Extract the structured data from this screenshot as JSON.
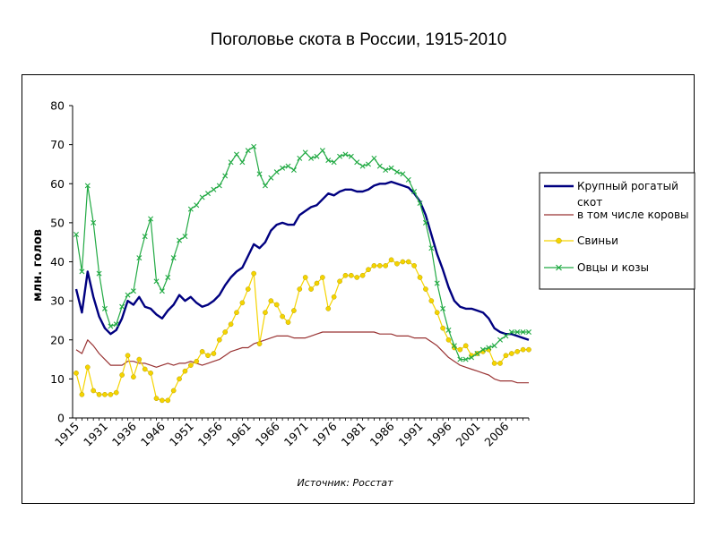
{
  "page": {
    "title": "Поголовье скота в России, 1915-2010"
  },
  "chart_data": {
    "type": "line",
    "title": "Поголовье скота в России, 1915-2010",
    "ylabel": "млн. голов",
    "xlabel": "",
    "source": "Источник: Росстат",
    "ylim": [
      0,
      80
    ],
    "yticks": [
      0,
      10,
      20,
      30,
      40,
      50,
      60,
      70,
      80
    ],
    "xtick_labels": [
      "1915",
      "1931",
      "1936",
      "1946",
      "1951",
      "1956",
      "1961",
      "1966",
      "1971",
      "1976",
      "1981",
      "1986",
      "1991",
      "1996",
      "2001",
      "2006"
    ],
    "grid": false,
    "legend_position": "right",
    "series": [
      {
        "name": "Крупный рогатый скот",
        "color": "#000080",
        "marker": "none",
        "values": [
          33,
          27,
          37.5,
          31,
          26,
          23,
          21.5,
          22.5,
          25.5,
          30,
          29,
          31,
          28.5,
          28,
          26.5,
          25.5,
          27.5,
          29,
          31.5,
          30,
          31,
          29.5,
          28.5,
          29,
          30,
          31.5,
          34,
          36,
          37.5,
          38.5,
          41.5,
          44.5,
          43.5,
          45,
          48,
          49.5,
          50,
          49.5,
          49.5,
          52,
          53,
          54,
          54.5,
          56,
          57.5,
          57,
          58,
          58.5,
          58.5,
          58,
          58,
          58.5,
          59.5,
          60,
          60,
          60.5,
          60,
          59.5,
          59,
          57.5,
          55.5,
          52,
          47,
          42,
          38,
          33.5,
          30,
          28.5,
          28,
          28,
          27.5,
          27,
          25.5,
          23,
          22,
          21.5,
          21.5,
          21,
          20.5,
          20
        ]
      },
      {
        "name": "в том числе коровы",
        "color": "#993333",
        "marker": "none",
        "values": [
          17.5,
          16.5,
          20,
          18.5,
          16.5,
          15,
          13.5,
          13.5,
          13.5,
          14.5,
          14.5,
          14,
          14,
          13.5,
          13,
          13.5,
          14,
          13.5,
          14,
          14,
          14.5,
          14,
          13.5,
          14,
          14.5,
          15,
          16,
          17,
          17.5,
          18,
          18,
          19,
          19.5,
          20,
          20.5,
          21,
          21,
          21,
          20.5,
          20.5,
          20.5,
          21,
          21.5,
          22,
          22,
          22,
          22,
          22,
          22,
          22,
          22,
          22,
          22,
          21.5,
          21.5,
          21.5,
          21,
          21,
          21,
          20.5,
          20.5,
          20.5,
          19.5,
          18.5,
          17,
          15.5,
          14.5,
          13.5,
          13,
          12.5,
          12,
          11.5,
          11,
          10,
          9.5,
          9.5,
          9.5,
          9,
          9,
          9
        ]
      },
      {
        "name": "Свиньи",
        "color": "#f5d400",
        "marker": "circle",
        "values": [
          11.5,
          6,
          13,
          7,
          6,
          6,
          6,
          6.5,
          11,
          16,
          10.5,
          15,
          12.5,
          11.5,
          5,
          4.5,
          4.5,
          7,
          10,
          12,
          13.5,
          14.5,
          17,
          16,
          16.5,
          20,
          22,
          24,
          27,
          29.5,
          33,
          37,
          19,
          27,
          30,
          29,
          26,
          24.5,
          27.5,
          33,
          36,
          33,
          34.5,
          36,
          28,
          31,
          35,
          36.5,
          36.5,
          36,
          36.5,
          38,
          39,
          39,
          39,
          40.5,
          39.5,
          40,
          40,
          39,
          36,
          33,
          30,
          27,
          23,
          20,
          18,
          17.5,
          18.5,
          16,
          16.5,
          17,
          17.5,
          14,
          14,
          16,
          16.5,
          17,
          17.5,
          17.5
        ]
      },
      {
        "name": "Овцы и козы",
        "color": "#22aa44",
        "marker": "x",
        "values": [
          47,
          37.5,
          59.5,
          50,
          37,
          28,
          23.5,
          24,
          28.5,
          31.5,
          32.5,
          41,
          46.5,
          51,
          35,
          32.5,
          36,
          41,
          45.5,
          46.5,
          53.5,
          54.5,
          56.5,
          57.5,
          58.5,
          59.5,
          62,
          65.5,
          67.5,
          65.5,
          68.5,
          69.5,
          62.5,
          59.5,
          61.5,
          63,
          64,
          64.5,
          63.5,
          66.5,
          68,
          66.5,
          67,
          68.5,
          66,
          65.5,
          67,
          67.5,
          67,
          65.5,
          64.5,
          65,
          66.5,
          64.5,
          63.5,
          64,
          63,
          62.5,
          61,
          58,
          55,
          50,
          43.5,
          34.5,
          28,
          22.5,
          18.5,
          15,
          15,
          15.5,
          16.5,
          17.5,
          18,
          18.5,
          20,
          21,
          22,
          22,
          22,
          22
        ]
      }
    ]
  }
}
